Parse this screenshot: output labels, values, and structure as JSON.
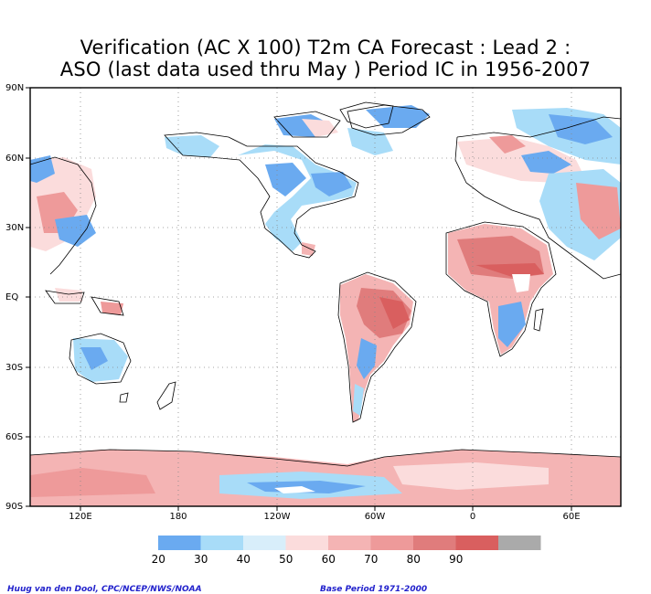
{
  "title": {
    "line1": "Verification (AC X 100) T2m CA Forecast : Lead 2 :",
    "line2": "ASO (last data used thru May ) Period IC in 1956-2007"
  },
  "lat_labels": [
    "90N",
    "60N",
    "30N",
    "EQ",
    "30S",
    "60S",
    "90S"
  ],
  "lon_labels": [
    "120E",
    "180",
    "120W",
    "60W",
    "0",
    "60E"
  ],
  "colorbar": {
    "ticks": [
      "20",
      "30",
      "40",
      "50",
      "60",
      "70",
      "80",
      "90"
    ],
    "colors": [
      "#6aaaf0",
      "#a8dcf8",
      "#d8eefa",
      "#fbdcdc",
      "#f4b4b4",
      "#ee9a9a",
      "#e07c7c",
      "#d95f5f",
      "#aaaaaa"
    ]
  },
  "credits": {
    "author": "Huug van den Dool, CPC/NCEP/NWS/NOAA",
    "base_period": "Base Period 1971-2000"
  }
}
